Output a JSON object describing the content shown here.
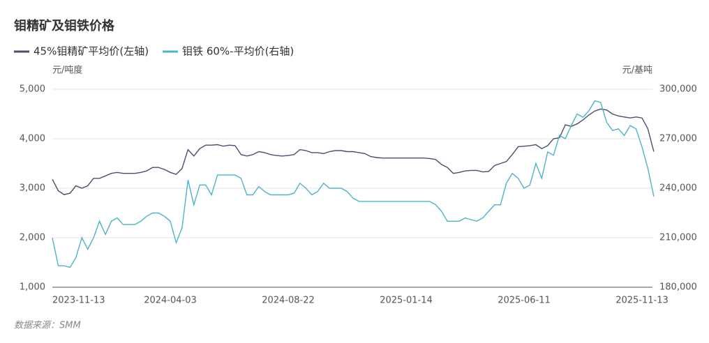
{
  "chart_data": {
    "type": "line",
    "title": "钼精矿及钼铁价格",
    "y_label": "元/吨度",
    "y2_label": "元/基吨",
    "source": "数据来源：SMM",
    "categories": [
      "2023-11-13",
      null,
      null,
      null,
      null,
      null,
      null,
      null,
      null,
      null,
      null,
      null,
      null,
      null,
      null,
      null,
      null,
      null,
      null,
      null,
      "2024-04-03",
      null,
      null,
      null,
      null,
      null,
      null,
      null,
      null,
      null,
      null,
      null,
      null,
      null,
      null,
      null,
      null,
      null,
      null,
      null,
      "2024-08-22",
      null,
      null,
      null,
      null,
      null,
      null,
      null,
      null,
      null,
      null,
      null,
      null,
      null,
      null,
      null,
      null,
      null,
      null,
      null,
      "2025-01-14",
      null,
      null,
      null,
      null,
      null,
      null,
      null,
      null,
      null,
      null,
      null,
      null,
      null,
      null,
      null,
      null,
      null,
      null,
      null,
      "2025-06-11",
      null,
      null,
      null,
      null,
      null,
      null,
      null,
      null,
      null,
      null,
      null,
      null,
      null,
      null,
      null,
      null,
      null,
      null,
      null,
      "2025-11-13",
      null,
      null
    ],
    "series": [
      {
        "name": "45%钼精矿平均价(左轴)",
        "color": "#4a4e6e",
        "axis": "y",
        "values": [
          3180,
          2950,
          2870,
          2900,
          3050,
          3000,
          3050,
          3200,
          3200,
          3250,
          3300,
          3320,
          3300,
          3300,
          3300,
          3320,
          3350,
          3420,
          3420,
          3380,
          3320,
          3280,
          3400,
          3780,
          3650,
          3800,
          3870,
          3870,
          3880,
          3850,
          3870,
          3860,
          3680,
          3650,
          3680,
          3740,
          3720,
          3680,
          3660,
          3650,
          3660,
          3680,
          3780,
          3760,
          3720,
          3720,
          3700,
          3740,
          3760,
          3760,
          3740,
          3740,
          3720,
          3700,
          3640,
          3620,
          3610,
          3610,
          3610,
          3610,
          3610,
          3610,
          3610,
          3610,
          3600,
          3580,
          3480,
          3420,
          3300,
          3320,
          3350,
          3360,
          3360,
          3330,
          3340,
          3460,
          3500,
          3540,
          3680,
          3840,
          3850,
          3860,
          3880,
          3800,
          3860,
          4000,
          4020,
          4280,
          4250,
          4300,
          4380,
          4480,
          4560,
          4600,
          4580,
          4500,
          4460,
          4440,
          4420,
          4440,
          4420,
          4200,
          3740
        ]
      },
      {
        "name": "钼铁 60%-平均价(右轴)",
        "color": "#4bb4c8",
        "axis": "y2",
        "values": [
          210000,
          193000,
          193000,
          192000,
          198000,
          210000,
          203000,
          210000,
          220000,
          212000,
          220000,
          222000,
          218000,
          218000,
          218000,
          220000,
          223000,
          225000,
          225000,
          223000,
          220000,
          207000,
          216000,
          245000,
          230000,
          242000,
          242000,
          236000,
          248000,
          248000,
          248000,
          248000,
          246000,
          236000,
          236000,
          241000,
          238000,
          236000,
          236000,
          236000,
          236000,
          237000,
          243000,
          240000,
          236000,
          238000,
          243000,
          240000,
          240000,
          240000,
          238000,
          234000,
          232000,
          232000,
          232000,
          232000,
          232000,
          232000,
          232000,
          232000,
          232000,
          232000,
          232000,
          232000,
          232000,
          230000,
          226000,
          220000,
          220000,
          220000,
          222000,
          221000,
          220000,
          222000,
          226000,
          230000,
          230000,
          243000,
          249000,
          246000,
          240000,
          242000,
          255000,
          246000,
          262000,
          260000,
          272000,
          270000,
          278000,
          285000,
          283000,
          287000,
          293000,
          292000,
          280000,
          275000,
          276000,
          272000,
          278000,
          276000,
          265000,
          252000,
          235000
        ]
      }
    ],
    "ylim": [
      1000,
      5000
    ],
    "yticks": [
      {
        "value": 1000,
        "label": "1,000"
      },
      {
        "value": 2000,
        "label": "2,000"
      },
      {
        "value": 3000,
        "label": "3,000"
      },
      {
        "value": 4000,
        "label": "4,000"
      },
      {
        "value": 5000,
        "label": "5,000"
      }
    ],
    "y2lim": [
      180000,
      300000
    ],
    "y2ticks": [
      {
        "value": 180000,
        "label": "180,000"
      },
      {
        "value": 210000,
        "label": "210,000"
      },
      {
        "value": 240000,
        "label": "240,000"
      },
      {
        "value": 270000,
        "label": "270,000"
      },
      {
        "value": 300000,
        "label": "300,000"
      }
    ],
    "grid": true
  }
}
